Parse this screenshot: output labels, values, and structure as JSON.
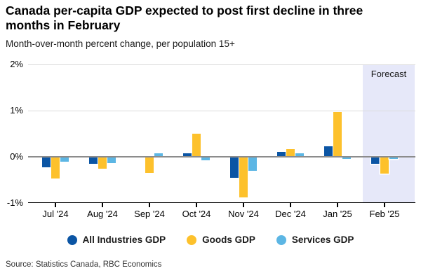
{
  "header": {
    "title": "Canada per-capita GDP expected to post first decline in three months in February",
    "subtitle": "Month-over-month percent change, per population 15+"
  },
  "chart_data": {
    "type": "bar",
    "categories": [
      "Jul '24",
      "Aug '24",
      "Sep '24",
      "Oct '24",
      "Nov '24",
      "Dec '24",
      "Jan '25",
      "Feb '25"
    ],
    "series": [
      {
        "name": "All Industries GDP",
        "color": "#0b55a4",
        "values": [
          -0.22,
          -0.15,
          -0.02,
          0.08,
          -0.45,
          0.1,
          0.22,
          -0.15
        ]
      },
      {
        "name": "Goods GDP",
        "color": "#fdc12c",
        "values": [
          -0.47,
          -0.25,
          -0.35,
          0.5,
          -0.88,
          0.16,
          0.97,
          -0.36
        ]
      },
      {
        "name": "Services GDP",
        "color": "#5cb6e4",
        "values": [
          -0.1,
          -0.13,
          0.07,
          -0.07,
          -0.3,
          0.07,
          -0.04,
          -0.05
        ]
      }
    ],
    "ylim": [
      -1,
      2
    ],
    "yticks": [
      2,
      1,
      0,
      -1
    ],
    "ytick_suffix": "%",
    "grid": "horizontal",
    "legend_position": "bottom",
    "forecast": {
      "label": "Forecast",
      "start_category": "Feb '25",
      "band_color": "#e6e8f9"
    }
  },
  "colors": {
    "axis": "#000000",
    "zero_line": "#8c8c8c",
    "gridline": "#dcdcdc"
  },
  "footer": {
    "source": "Source: Statistics Canada, RBC Economics"
  }
}
